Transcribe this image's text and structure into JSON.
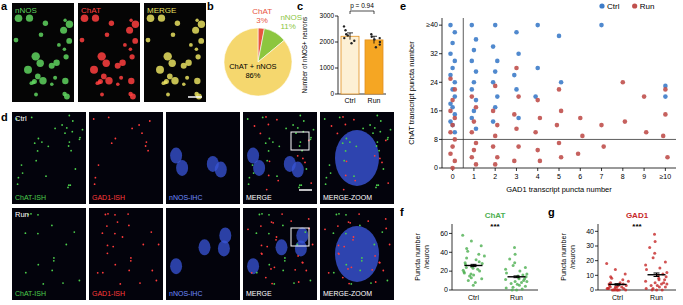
{
  "chart_data": [
    {
      "panel": "b",
      "type": "pie",
      "categories": [
        "ChAT",
        "nNOS",
        "ChAT + nNOS"
      ],
      "values": [
        3,
        11,
        86
      ],
      "value_labels": [
        "3%",
        "11%",
        "86%"
      ],
      "colors": [
        "#e8553f",
        "#8cc63f",
        "#f5d76e"
      ],
      "data_labels": true
    },
    {
      "panel": "c",
      "type": "bar",
      "categories": [
        "Ctrl",
        "Run"
      ],
      "values": [
        2220,
        2080
      ],
      "errors": [
        130,
        140
      ],
      "points": [
        [
          2600,
          2450,
          2300,
          2250,
          2150,
          2050,
          1950
        ],
        [
          2300,
          2200,
          2150,
          2100,
          2000,
          1900,
          1800
        ]
      ],
      "colors": [
        "#fdf0d5",
        "#f5a623"
      ],
      "y_label": "Number of nNOS+ neurons",
      "ylim": [
        0,
        3000
      ],
      "yticks": [
        0,
        1000,
        2000,
        3000
      ],
      "annotation": "p = 0.94"
    },
    {
      "panel": "e",
      "type": "scatter",
      "x_label": "GAD1 transcript puncta number",
      "y_label": "ChAT transcript puncta number",
      "legend": "top-right",
      "marker": "circle",
      "hline": 8,
      "vline": 0.5,
      "xlim": [
        -0.5,
        10.5
      ],
      "xticks": [
        0,
        1,
        2,
        3,
        4,
        5,
        6,
        7,
        8,
        9,
        {
          "value": 10,
          "label": "≥10"
        }
      ],
      "ylim": [
        0,
        42
      ],
      "yticks": [
        0,
        8,
        16,
        24,
        32,
        {
          "value": 40,
          "label": "≥40"
        }
      ],
      "series": [
        {
          "name": "Ctrl",
          "color": "#3d7cc9",
          "x": [
            -0.1,
            0.1,
            0,
            -0.1,
            0.1,
            0,
            -0.1,
            0.1,
            0,
            0.1,
            -0.1,
            0,
            0.1,
            -0.1,
            0,
            0.1,
            0.9,
            1.1,
            1,
            0.9,
            1.1,
            1,
            0.9,
            1.1,
            1,
            0.9,
            1.1,
            2,
            1.9,
            2.1,
            2,
            1.9,
            2.1,
            2,
            1.9,
            3,
            3.1,
            2.9,
            3,
            3.1,
            4,
            4,
            3.9,
            5,
            5.1,
            7,
            10,
            10
          ],
          "values": [
            40,
            38,
            35,
            32,
            30,
            28,
            26,
            24,
            22,
            20,
            18,
            17,
            15,
            13,
            12,
            10,
            40,
            36,
            33,
            30,
            27,
            24,
            22,
            19,
            16,
            14,
            11,
            40,
            34,
            30,
            27,
            24,
            20,
            17,
            13,
            38,
            32,
            26,
            22,
            14,
            40,
            28,
            20,
            37,
            24,
            40,
            23,
            20
          ]
        },
        {
          "name": "Run",
          "color": "#c0504d",
          "x": [
            -0.1,
            0.1,
            0,
            -0.1,
            0.1,
            0,
            -0.1,
            0.1,
            0,
            -0.1,
            0.1,
            0,
            0.9,
            1.1,
            1,
            0.9,
            1.1,
            1,
            0.9,
            1.1,
            2,
            1.9,
            2.1,
            2,
            1.9,
            2.1,
            2,
            3,
            3.1,
            2.9,
            3,
            3.1,
            2.9,
            4,
            4.1,
            3.9,
            4,
            4.1,
            5,
            5.1,
            4.9,
            5,
            5.1,
            6,
            6.1,
            5.9,
            7,
            7.1,
            8,
            8.1,
            9,
            9.1,
            10,
            10,
            9.9,
            10.1
          ],
          "values": [
            25,
            22,
            19,
            16,
            14,
            12,
            10,
            8,
            6,
            4,
            2,
            0,
            20,
            17,
            13,
            10,
            7,
            5,
            3,
            1,
            23,
            16,
            12,
            9,
            6,
            3,
            1,
            28,
            20,
            15,
            11,
            6,
            2,
            19,
            14,
            10,
            5,
            2,
            22,
            16,
            12,
            7,
            3,
            14,
            9,
            4,
            12,
            6,
            24,
            13,
            20,
            10,
            22,
            15,
            9,
            3
          ]
        }
      ]
    },
    {
      "panel": "f",
      "type": "strip",
      "title": "ChAT",
      "categories": [
        "Ctrl",
        "Run"
      ],
      "color": "#4caf50",
      "y_label": "Puncta number /neuron",
      "ylim": [
        0,
        70
      ],
      "yticks": [
        0,
        20,
        40,
        60
      ],
      "annotation": "***",
      "points": [
        [
          58,
          52,
          47,
          44,
          41,
          38,
          36,
          34,
          32,
          30,
          29,
          28,
          27,
          26,
          25,
          24,
          23,
          22,
          21,
          20,
          19,
          18,
          17,
          16,
          15,
          13,
          12,
          10,
          8,
          5
        ],
        [
          45,
          38,
          33,
          29,
          26,
          24,
          22,
          20,
          18,
          17,
          16,
          15,
          14,
          13,
          12,
          12,
          11,
          10,
          9,
          9,
          8,
          7,
          6,
          5,
          4,
          3,
          2,
          1,
          0,
          0
        ]
      ],
      "means": [
        26,
        14
      ],
      "errors": [
        1.2,
        0.9
      ]
    },
    {
      "panel": "g",
      "type": "strip",
      "title": "GAD1",
      "categories": [
        "Ctrl",
        "Run"
      ],
      "color": "#c62828",
      "y_label": "Puncta number /neuron",
      "ylim": [
        0,
        45
      ],
      "yticks": [
        0,
        10,
        20,
        30,
        40
      ],
      "annotation": "***",
      "points": [
        [
          18,
          14,
          11,
          9,
          8,
          7,
          6,
          5,
          5,
          4,
          4,
          3,
          3,
          3,
          2,
          2,
          2,
          2,
          1,
          1,
          1,
          1,
          1,
          0,
          0,
          0,
          0,
          0,
          0,
          0
        ],
        [
          38,
          33,
          29,
          25,
          22,
          19,
          17,
          15,
          14,
          12,
          11,
          10,
          9,
          8,
          7,
          7,
          6,
          5,
          5,
          4,
          4,
          3,
          3,
          2,
          2,
          1,
          1,
          0,
          0,
          0
        ]
      ],
      "means": [
        3.8,
        10.4
      ],
      "errors": [
        0.5,
        1.2
      ]
    }
  ],
  "images": [
    {
      "panel": "a",
      "channels": [
        {
          "label": "nNOS",
          "color": "#5fd35f"
        },
        {
          "label": "ChAT",
          "color": "#ff4040"
        },
        {
          "label": "MERGE",
          "color": "#e8e060"
        }
      ]
    },
    {
      "panel": "d",
      "rows": [
        "Ctrl",
        "Run"
      ],
      "channels": [
        {
          "label": "ChAT-ISH",
          "color": "#4ccf4c"
        },
        {
          "label": "GAD1-ISH",
          "color": "#ff3b3b"
        },
        {
          "label": "nNOS-IHC",
          "color": "#6f8cff"
        },
        {
          "label": "MERGE",
          "color": "#ffffff"
        },
        {
          "label": "MERGE-ZOOM",
          "color": "#ffffff"
        }
      ]
    }
  ]
}
